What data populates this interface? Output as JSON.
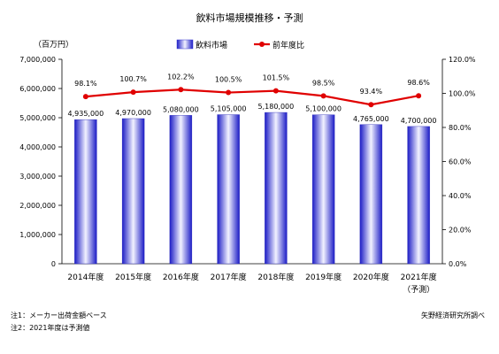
{
  "chart_data": {
    "type": "bar+line",
    "title": "飲料市場規模推移・予測",
    "unit_left": "（百万円）",
    "categories": [
      "2014年度",
      "2015年度",
      "2016年度",
      "2017年度",
      "2018年度",
      "2019年度",
      "2020年度",
      "2021年度"
    ],
    "category_sublabels": [
      "",
      "",
      "",
      "",
      "",
      "",
      "",
      "（予測）"
    ],
    "series": [
      {
        "name": "飲料市場",
        "type": "bar",
        "axis": "left",
        "values": [
          4935000,
          4970000,
          5080000,
          5105000,
          5180000,
          5100000,
          4765000,
          4700000
        ],
        "labels": [
          "4,935,000",
          "4,970,000",
          "5,080,000",
          "5,105,000",
          "5,180,000",
          "5,100,000",
          "4,765,000",
          "4,700,000"
        ],
        "color": "#2a2ad8"
      },
      {
        "name": "前年度比",
        "type": "line",
        "axis": "right",
        "values": [
          98.1,
          100.7,
          102.2,
          100.5,
          101.5,
          98.5,
          93.4,
          98.6
        ],
        "labels": [
          "98.1%",
          "100.7%",
          "102.2%",
          "100.5%",
          "101.5%",
          "98.5%",
          "93.4%",
          "98.6%"
        ],
        "color": "#e00000"
      }
    ],
    "y_left": {
      "range": [
        0,
        7000000
      ],
      "ticks": [
        0,
        1000000,
        2000000,
        3000000,
        4000000,
        5000000,
        6000000,
        7000000
      ],
      "tick_labels": [
        "0",
        "1,000,000",
        "2,000,000",
        "3,000,000",
        "4,000,000",
        "5,000,000",
        "6,000,000",
        "7,000,000"
      ]
    },
    "y_right": {
      "range": [
        0,
        120
      ],
      "ticks": [
        0,
        20,
        40,
        60,
        80,
        100,
        120
      ],
      "tick_labels": [
        "0.0%",
        "20.0%",
        "40.0%",
        "60.0%",
        "80.0%",
        "100.0%",
        "120.0%"
      ]
    },
    "legend_position": "top",
    "grid": false
  },
  "notes": [
    "注1：メーカー出荷金額ベース",
    "注2：2021年度は予測値"
  ],
  "source": "矢野経済研究所調べ"
}
